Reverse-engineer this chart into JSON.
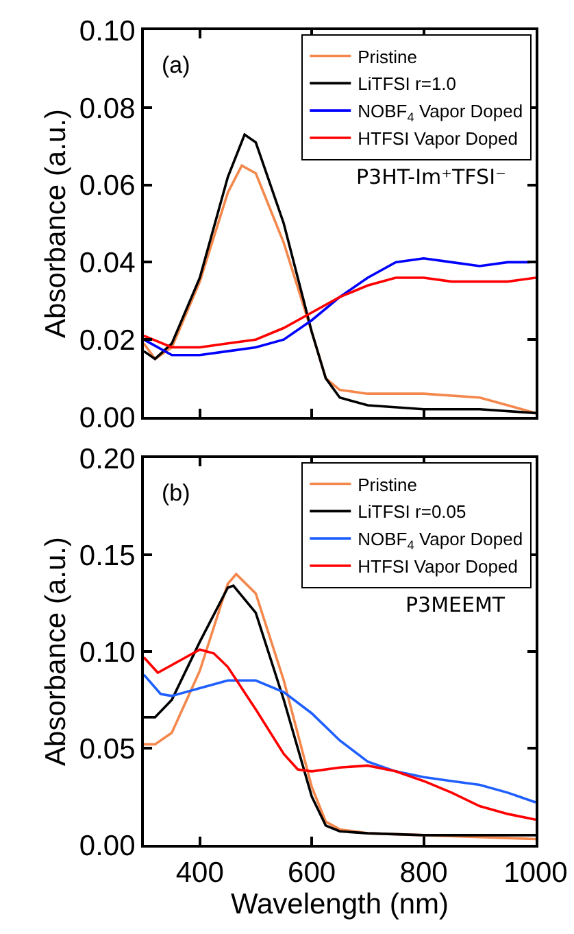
{
  "chart_data": [
    {
      "type": "line",
      "ylabel": "Absorbance (a.u.)",
      "annotations": [
        "(a)",
        "P3HT-Im⁺TFSI⁻"
      ],
      "xlim": [
        300,
        1000
      ],
      "xticks": [
        {
          "value": 400,
          "label": null
        },
        {
          "value": 600,
          "label": null
        },
        {
          "value": 800,
          "label": null
        },
        {
          "value": 1000,
          "label": null
        }
      ],
      "ylim": [
        0,
        0.1
      ],
      "yticks": [
        {
          "value": 0,
          "label": "0.00"
        },
        0.02,
        0.04,
        0.06,
        0.08,
        {
          "value": 0.1,
          "label": "0.10"
        }
      ],
      "tick_labels": "y",
      "grid": false,
      "legend": "top right",
      "marker": "none",
      "line_style": "solid",
      "series": [
        {
          "name": "Pristine",
          "color": "#f4874b",
          "x": [
            300,
            320,
            350,
            400,
            450,
            475,
            500,
            550,
            600,
            625,
            650,
            700,
            800,
            900,
            950,
            1000
          ],
          "values": [
            0.019,
            0.015,
            0.018,
            0.035,
            0.058,
            0.065,
            0.063,
            0.045,
            0.022,
            0.01,
            0.007,
            0.006,
            0.006,
            0.005,
            0.003,
            0.001
          ]
        },
        {
          "name": "LiTFSI r=1.0",
          "color": "#000000",
          "x": [
            300,
            320,
            350,
            400,
            450,
            480,
            500,
            550,
            600,
            625,
            650,
            700,
            800,
            900,
            1000
          ],
          "values": [
            0.017,
            0.015,
            0.019,
            0.036,
            0.062,
            0.073,
            0.071,
            0.05,
            0.022,
            0.01,
            0.005,
            0.003,
            0.002,
            0.002,
            0.001
          ]
        },
        {
          "name": "NOBF$_{4}$ Vapor Doped",
          "color": "#0000ff",
          "x": [
            300,
            350,
            400,
            450,
            500,
            550,
            600,
            650,
            700,
            750,
            800,
            850,
            900,
            950,
            990
          ],
          "values": [
            0.02,
            0.016,
            0.016,
            0.017,
            0.018,
            0.02,
            0.025,
            0.031,
            0.036,
            0.04,
            0.041,
            0.04,
            0.039,
            0.04,
            0.04
          ]
        },
        {
          "name": "HTFSI Vapor Doped",
          "color": "#ff0000",
          "x": [
            300,
            350,
            400,
            450,
            500,
            550,
            600,
            650,
            700,
            750,
            800,
            850,
            900,
            950,
            1000
          ],
          "values": [
            0.021,
            0.018,
            0.018,
            0.019,
            0.02,
            0.023,
            0.027,
            0.031,
            0.034,
            0.036,
            0.036,
            0.035,
            0.035,
            0.035,
            0.036
          ]
        }
      ]
    },
    {
      "type": "line",
      "xlabel": "Wavelength (nm)",
      "ylabel": "Absorbance (a.u.)",
      "annotations": [
        "(b)",
        "P3MEEMT"
      ],
      "xlim": [
        300,
        1000
      ],
      "xticks": [
        400,
        600,
        800,
        1000
      ],
      "ylim": [
        0,
        0.2
      ],
      "yticks": [
        {
          "value": 0,
          "label": "0.00"
        },
        0.05,
        {
          "value": 0.1,
          "label": "0.10"
        },
        0.15,
        {
          "value": 0.2,
          "label": "0.20"
        }
      ],
      "grid": false,
      "legend": "top right",
      "marker": "none",
      "line_style": "solid",
      "series": [
        {
          "name": "Pristine",
          "color": "#f4874b",
          "x": [
            300,
            320,
            350,
            400,
            450,
            465,
            500,
            550,
            600,
            625,
            650,
            700,
            800,
            900,
            1000
          ],
          "values": [
            0.052,
            0.052,
            0.058,
            0.09,
            0.135,
            0.14,
            0.13,
            0.085,
            0.03,
            0.012,
            0.008,
            0.006,
            0.005,
            0.004,
            0.003
          ]
        },
        {
          "name": "LiTFSI r=0.05",
          "color": "#000000",
          "x": [
            300,
            320,
            350,
            400,
            450,
            460,
            500,
            550,
            600,
            625,
            650,
            700,
            800,
            900,
            1000
          ],
          "values": [
            0.066,
            0.066,
            0.075,
            0.105,
            0.133,
            0.134,
            0.12,
            0.075,
            0.025,
            0.01,
            0.007,
            0.006,
            0.005,
            0.005,
            0.005
          ]
        },
        {
          "name": "NOBF$_{4}$ Vapor Doped",
          "color": "#1f5fff",
          "x": [
            300,
            330,
            350,
            400,
            450,
            500,
            550,
            600,
            650,
            700,
            750,
            800,
            850,
            900,
            950,
            1000
          ],
          "values": [
            0.088,
            0.078,
            0.077,
            0.081,
            0.085,
            0.085,
            0.079,
            0.068,
            0.054,
            0.043,
            0.038,
            0.035,
            0.033,
            0.031,
            0.027,
            0.022
          ]
        },
        {
          "name": "HTFSI Vapor Doped",
          "color": "#ff0000",
          "x": [
            300,
            325,
            350,
            400,
            425,
            450,
            500,
            550,
            575,
            600,
            650,
            700,
            750,
            800,
            850,
            900,
            950,
            1000
          ],
          "values": [
            0.097,
            0.089,
            0.093,
            0.101,
            0.099,
            0.092,
            0.07,
            0.047,
            0.039,
            0.038,
            0.04,
            0.041,
            0.038,
            0.033,
            0.027,
            0.02,
            0.016,
            0.013
          ]
        }
      ]
    }
  ]
}
